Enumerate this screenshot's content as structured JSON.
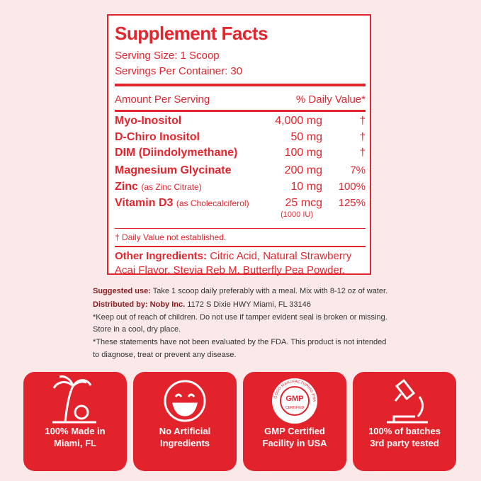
{
  "facts": {
    "title": "Supplement Facts",
    "serving_size": "Serving Size: 1 Scoop",
    "servings": "Servings Per Container: 30",
    "header_left": "Amount Per Serving",
    "header_right": "% Daily Value*",
    "rows": [
      {
        "name": "Myo-Inositol",
        "amount": "4,000 mg",
        "dv": "†"
      },
      {
        "name": "D-Chiro Inositol",
        "amount": "50 mg",
        "dv": "†"
      },
      {
        "name": "DIM (Diindolymethane)",
        "amount": "100 mg",
        "dv": "†"
      },
      {
        "name": "Magnesium Glycinate",
        "amount": "200 mg",
        "dv": "7%"
      },
      {
        "name": "Zinc",
        "note": "(as Zinc Citrate)",
        "amount": "10 mg",
        "dv": "100%"
      },
      {
        "name": "Vitamin D3",
        "note": "(as Cholecalciferol)",
        "amount": "25 mcg",
        "sub": "(1000 IU)",
        "dv": "125%"
      }
    ],
    "footnote": "† Daily Value not established.",
    "other_label": "Other Ingredients:",
    "other_lines": [
      "Citric Acid, Natural Strawberry",
      "Acai Flavor, Stevia Reb M, Butterfly Pea Powder."
    ]
  },
  "notes": [
    {
      "label": "Suggested use:",
      "text": "Take 1 scoop daily preferably with a meal. Mix with 8-12 oz of water."
    },
    {
      "label": "Distributed by: Noby Inc.",
      "text": "1172 S Dixie HWY Miami, FL 33146"
    },
    {
      "text": "*Keep out of reach of children. Do not use if tamper evident seal is broken or missing."
    },
    {
      "text": "Store in a cool, dry place."
    },
    {
      "text": "*These statements have not been evaluated by the FDA. This product is not intended"
    },
    {
      "text": "to diagnose, treat or prevent any disease."
    }
  ],
  "badges": [
    {
      "lines": [
        "100% Made in",
        "Miami, FL"
      ]
    },
    {
      "lines": [
        "No Artificial",
        "Ingredients"
      ]
    },
    {
      "lines": [
        "GMP Certified",
        "Facility in USA"
      ],
      "seal": "GMP",
      "seal_sub": "CERTIFIED",
      "seal_ring": "GOOD MANUFACTURING PRACTICE"
    },
    {
      "lines": [
        "100% of batches",
        "3rd party tested"
      ]
    }
  ]
}
